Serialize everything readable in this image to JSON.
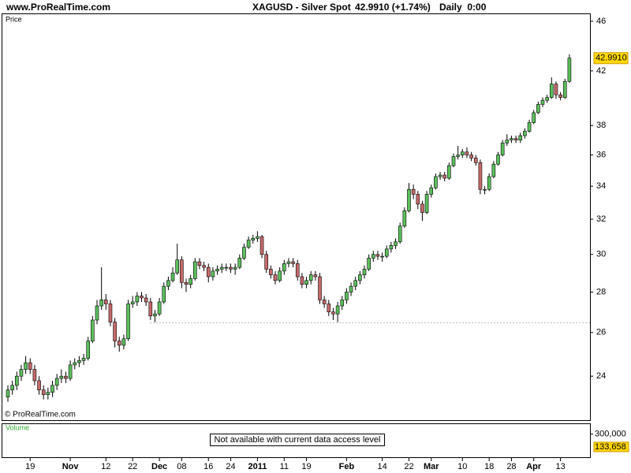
{
  "header": {
    "site": "www.ProRealTime.com",
    "instrument": "XAGUSD - Silver Spot",
    "quote": "42.9910 (+1.74%)",
    "period": "Daily  0:00"
  },
  "chart_data": {
    "type": "candlestick",
    "panel_label": "Price",
    "watermark": "© ProRealTime.com",
    "log_scale": true,
    "up_color": "#5cc05c",
    "down_color": "#c86a6a",
    "ylim": [
      22.14,
      46.6
    ],
    "yticks": [
      24,
      26,
      28,
      30,
      32,
      34,
      36,
      38,
      42,
      46
    ],
    "last_price": {
      "value": 42.991,
      "label": "42.9910"
    },
    "reference_line": 26.47,
    "categories": [
      null,
      null,
      null,
      null,
      null,
      "19",
      null,
      null,
      null,
      null,
      null,
      null,
      null,
      null,
      "Nov",
      null,
      null,
      null,
      null,
      null,
      null,
      null,
      "12",
      null,
      null,
      null,
      null,
      null,
      "22",
      null,
      null,
      null,
      null,
      null,
      "Dec",
      null,
      null,
      null,
      null,
      "08",
      null,
      null,
      null,
      null,
      null,
      "16",
      null,
      null,
      null,
      null,
      "24",
      null,
      null,
      null,
      null,
      null,
      "2011",
      null,
      null,
      null,
      null,
      null,
      "11",
      null,
      null,
      null,
      null,
      "19",
      null,
      null,
      null,
      null,
      null,
      null,
      null,
      null,
      "Feb",
      null,
      null,
      null,
      null,
      null,
      null,
      null,
      "14",
      null,
      null,
      null,
      null,
      null,
      "22",
      null,
      null,
      null,
      null,
      "Mar",
      null,
      null,
      null,
      null,
      null,
      null,
      "10",
      null,
      null,
      null,
      null,
      null,
      "18",
      null,
      null,
      null,
      null,
      "28",
      null,
      null,
      null,
      null,
      "Apr",
      null,
      null,
      null,
      null,
      null,
      "13",
      null,
      null
    ],
    "open": [
      23.1,
      23.4,
      23.6,
      24.0,
      24.3,
      24.6,
      24.3,
      23.8,
      23.4,
      23.2,
      23.3,
      23.6,
      23.9,
      24.0,
      23.9,
      24.5,
      24.6,
      24.7,
      24.8,
      25.6,
      26.6,
      27.3,
      27.6,
      27.4,
      26.5,
      25.6,
      25.4,
      25.7,
      27.4,
      27.5,
      27.8,
      27.7,
      27.5,
      26.8,
      26.9,
      27.5,
      28.3,
      28.6,
      29.0,
      29.7,
      28.5,
      28.4,
      28.7,
      29.6,
      29.4,
      29.3,
      28.8,
      29.1,
      29.2,
      29.3,
      29.3,
      29.2,
      29.3,
      29.8,
      30.4,
      30.8,
      30.9,
      31.0,
      30.0,
      29.2,
      28.9,
      28.6,
      29.1,
      29.5,
      29.6,
      29.5,
      28.8,
      28.4,
      28.6,
      28.9,
      28.8,
      27.6,
      27.4,
      27.0,
      26.9,
      27.3,
      27.6,
      28.0,
      28.3,
      28.6,
      28.9,
      29.2,
      29.8,
      30.0,
      29.9,
      29.9,
      30.3,
      30.5,
      30.7,
      31.6,
      32.5,
      33.8,
      33.5,
      32.9,
      32.4,
      33.5,
      33.9,
      34.6,
      34.7,
      34.5,
      35.3,
      35.9,
      36.0,
      36.2,
      36.0,
      35.8,
      35.5,
      33.8,
      33.8,
      34.6,
      35.4,
      36.0,
      36.8,
      37.0,
      37.1,
      37.0,
      37.3,
      37.6,
      38.2,
      38.9,
      39.5,
      39.8,
      40.0,
      41.0,
      40.2,
      40.0,
      41.2
    ],
    "high": [
      23.6,
      23.8,
      24.2,
      24.5,
      24.9,
      24.8,
      24.5,
      24.0,
      23.6,
      23.5,
      23.8,
      24.1,
      24.3,
      24.2,
      24.7,
      24.8,
      24.9,
      25.0,
      25.8,
      26.8,
      27.6,
      29.3,
      27.9,
      27.6,
      26.7,
      25.8,
      25.9,
      27.6,
      27.8,
      28.0,
      28.0,
      27.9,
      27.7,
      27.1,
      27.7,
      28.5,
      28.8,
      29.3,
      30.6,
      29.9,
      28.7,
      28.9,
      29.8,
      29.8,
      29.6,
      29.5,
      29.3,
      29.4,
      29.5,
      29.5,
      29.5,
      29.5,
      30.0,
      30.6,
      31.0,
      31.1,
      31.3,
      31.1,
      30.2,
      29.4,
      29.1,
      29.3,
      29.7,
      29.8,
      29.8,
      29.7,
      29.0,
      28.8,
      29.1,
      29.1,
      29.0,
      27.8,
      27.6,
      27.2,
      27.5,
      27.8,
      28.2,
      28.5,
      28.8,
      29.1,
      29.4,
      30.0,
      30.2,
      30.2,
      30.1,
      30.5,
      30.7,
      30.9,
      31.8,
      32.7,
      34.2,
      34.1,
      33.7,
      33.1,
      33.7,
      34.1,
      34.8,
      34.9,
      34.9,
      35.5,
      36.1,
      36.6,
      36.4,
      36.5,
      36.2,
      36.0,
      35.7,
      34.0,
      34.8,
      35.6,
      36.2,
      37.0,
      37.4,
      37.3,
      37.3,
      37.5,
      37.8,
      38.4,
      39.1,
      39.7,
      40.0,
      40.2,
      41.5,
      41.2,
      40.4,
      41.4,
      43.3
    ],
    "low": [
      22.9,
      23.2,
      23.4,
      23.8,
      24.1,
      24.1,
      23.6,
      23.2,
      23.0,
      23.0,
      23.1,
      23.4,
      23.7,
      23.7,
      23.8,
      24.3,
      24.4,
      24.5,
      24.7,
      25.5,
      26.4,
      27.1,
      27.1,
      26.3,
      25.3,
      25.1,
      25.2,
      25.6,
      27.2,
      27.3,
      27.5,
      27.3,
      26.6,
      26.5,
      26.8,
      27.4,
      28.1,
      28.5,
      28.9,
      28.2,
      28.0,
      28.2,
      28.6,
      29.2,
      29.1,
      28.5,
      28.6,
      28.9,
      29.0,
      29.1,
      29.0,
      28.9,
      29.2,
      29.7,
      30.3,
      30.6,
      30.7,
      29.8,
      29.0,
      28.7,
      28.4,
      28.5,
      28.9,
      29.3,
      29.3,
      28.6,
      28.2,
      28.2,
      28.4,
      28.6,
      27.4,
      27.2,
      26.8,
      26.6,
      26.5,
      27.1,
      27.4,
      27.8,
      28.1,
      28.4,
      28.7,
      29.1,
      29.6,
      29.7,
      29.6,
      29.8,
      30.1,
      30.3,
      30.6,
      31.5,
      32.4,
      33.2,
      32.6,
      31.9,
      32.3,
      33.3,
      33.8,
      34.4,
      34.3,
      34.4,
      35.2,
      35.7,
      35.8,
      35.8,
      35.6,
      35.3,
      33.5,
      33.5,
      33.7,
      34.5,
      35.3,
      35.9,
      36.6,
      36.8,
      36.8,
      36.8,
      37.1,
      37.5,
      38.1,
      38.8,
      39.3,
      39.6,
      39.9,
      39.9,
      39.8,
      39.9,
      41.1
    ],
    "close": [
      23.4,
      23.6,
      24.0,
      24.3,
      24.6,
      24.3,
      23.8,
      23.4,
      23.2,
      23.3,
      23.6,
      23.9,
      24.0,
      23.9,
      24.5,
      24.6,
      24.7,
      24.8,
      25.6,
      26.6,
      27.3,
      27.6,
      27.4,
      26.5,
      25.6,
      25.4,
      25.7,
      27.4,
      27.5,
      27.8,
      27.7,
      27.5,
      26.8,
      26.9,
      27.5,
      28.3,
      28.6,
      29.0,
      29.7,
      28.5,
      28.4,
      28.7,
      29.6,
      29.4,
      29.3,
      28.8,
      29.1,
      29.2,
      29.3,
      29.3,
      29.2,
      29.3,
      29.8,
      30.4,
      30.8,
      30.9,
      31.0,
      30.0,
      29.2,
      28.9,
      28.6,
      29.1,
      29.5,
      29.6,
      29.5,
      28.8,
      28.4,
      28.6,
      28.9,
      28.8,
      27.6,
      27.4,
      27.0,
      26.9,
      27.3,
      27.6,
      28.0,
      28.3,
      28.6,
      28.9,
      29.2,
      29.8,
      30.0,
      29.9,
      29.9,
      30.3,
      30.5,
      30.7,
      31.6,
      32.5,
      33.8,
      33.5,
      32.9,
      32.4,
      33.5,
      33.9,
      34.6,
      34.7,
      34.5,
      35.3,
      35.9,
      36.0,
      36.2,
      36.0,
      35.8,
      35.5,
      33.8,
      33.8,
      34.6,
      35.4,
      36.0,
      36.8,
      37.0,
      37.1,
      37.0,
      37.3,
      37.6,
      38.2,
      38.9,
      39.5,
      39.8,
      40.0,
      41.0,
      40.2,
      40.0,
      41.2,
      42.991
    ],
    "volume": {
      "label": "Volume",
      "message": "Not available with current data access level",
      "ylim": [
        0,
        440000
      ],
      "yticks": [
        {
          "value": 300000,
          "label": "300,000"
        }
      ],
      "last": {
        "value": 133658,
        "label": "133,658"
      }
    }
  }
}
